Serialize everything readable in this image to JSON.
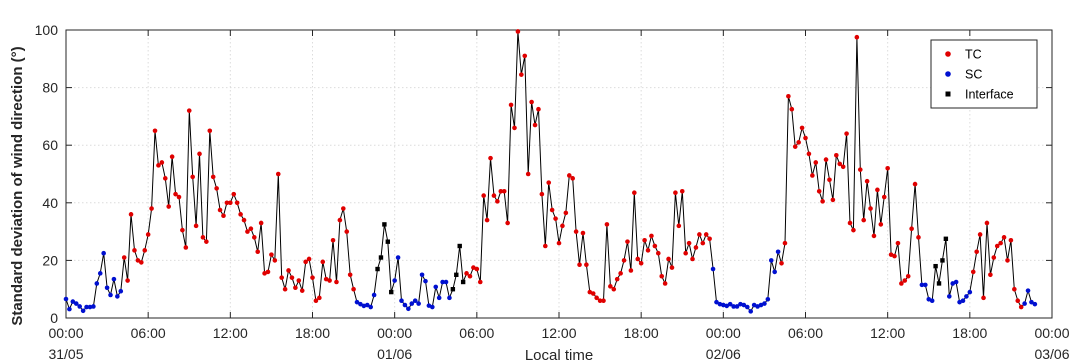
{
  "chart_data": {
    "type": "line",
    "title": "",
    "xlabel": "Local time",
    "ylabel": "Standard deviation of wind direction (°)",
    "ylim": [
      0,
      100
    ],
    "yticks": [
      0,
      20,
      40,
      60,
      80,
      100
    ],
    "xlim_hours": [
      0,
      72
    ],
    "xticks": [
      {
        "hours": 0,
        "time": "00:00",
        "date": "31/05"
      },
      {
        "hours": 6,
        "time": "06:00",
        "date": ""
      },
      {
        "hours": 12,
        "time": "12:00",
        "date": ""
      },
      {
        "hours": 18,
        "time": "18:00",
        "date": ""
      },
      {
        "hours": 24,
        "time": "00:00",
        "date": "01/06"
      },
      {
        "hours": 30,
        "time": "06:00",
        "date": ""
      },
      {
        "hours": 36,
        "time": "12:00",
        "date": ""
      },
      {
        "hours": 42,
        "time": "18:00",
        "date": ""
      },
      {
        "hours": 48,
        "time": "00:00",
        "date": "02/06"
      },
      {
        "hours": 54,
        "time": "06:00",
        "date": ""
      },
      {
        "hours": 60,
        "time": "12:00",
        "date": ""
      },
      {
        "hours": 66,
        "time": "18:00",
        "date": ""
      },
      {
        "hours": 72,
        "time": "00:00",
        "date": "03/06"
      }
    ],
    "grid": true,
    "legend": {
      "position": "top-right",
      "entries": [
        {
          "key": "TC",
          "label": "TC",
          "color": "#e00000"
        },
        {
          "key": "SC",
          "label": "SC",
          "color": "#0010d0"
        },
        {
          "key": "IF",
          "label": "Interface",
          "color": "#000000"
        }
      ]
    },
    "line_color": "#000000",
    "interval_minutes": 15,
    "segments": [
      {
        "class": "SC",
        "values": [
          6.6,
          3.1,
          5.7,
          5.0,
          4.0,
          2.5,
          3.8,
          3.8,
          4.0,
          12.0,
          15.5,
          22.5,
          10.5,
          8.0,
          13.5,
          7.5,
          9.3
        ]
      },
      {
        "class": "TC",
        "values": [
          21.0,
          13.0,
          36.0,
          23.5,
          20.0,
          19.3,
          23.5,
          29.0,
          38.0,
          65.0,
          53.0,
          54.0,
          48.5,
          38.7,
          56.0,
          43.0,
          42.0,
          30.5,
          24.5,
          72.0,
          49.0,
          32.0,
          57.0,
          28.0,
          26.5,
          65.0,
          49.0,
          45.0,
          37.5,
          35.5,
          40.0,
          40.0,
          43.0,
          40.0,
          36.0,
          34.0,
          30.0,
          31.0,
          28.0,
          23.0,
          33.0,
          15.5,
          16.0,
          22.0,
          20.0,
          50.0,
          14.0,
          10.0,
          16.5,
          14.0,
          10.5,
          13.0,
          9.5,
          19.5,
          20.5,
          14.0,
          6.0,
          7.0,
          19.5,
          13.5,
          13.0,
          27.0,
          12.5,
          34.0,
          38.0,
          30.0,
          15.0,
          10.0
        ]
      },
      {
        "class": "SC",
        "values": [
          5.5,
          4.8,
          4.2,
          4.5,
          3.8,
          8.0
        ]
      },
      {
        "class": "IF",
        "values": [
          17.0,
          21.0,
          32.5,
          26.5,
          9.0
        ]
      },
      {
        "class": "SC",
        "values": [
          13.0,
          21.0,
          6.0,
          4.5,
          3.2,
          5.0,
          6.0,
          5.0,
          15.0,
          12.8,
          4.3,
          3.8,
          10.8,
          7.0,
          12.5,
          12.5,
          7.0
        ]
      },
      {
        "class": "IF",
        "values": [
          10.0,
          15.0,
          25.0,
          12.5
        ]
      },
      {
        "class": "TC",
        "values": [
          15.5,
          14.5,
          17.5,
          17.0,
          12.5,
          42.5,
          34.0,
          55.5,
          42.5,
          40.5,
          44.0,
          44.0,
          33.0,
          74.0,
          66.0,
          99.5,
          84.5,
          91.0,
          50.0,
          75.0,
          67.0,
          72.5,
          43.0,
          25.0,
          47.0,
          37.5,
          34.5,
          26.0,
          32.0,
          36.5,
          49.5,
          48.5,
          30.0,
          18.5,
          29.5,
          18.5,
          9.0,
          8.5,
          7.0,
          6.0,
          6.0,
          32.5,
          11.0,
          10.0,
          13.5,
          15.5,
          20.0,
          26.5,
          16.5,
          43.5,
          20.5,
          19.0,
          27.0,
          23.5,
          28.5,
          25.0,
          22.5,
          14.5,
          12.0,
          20.5,
          17.5,
          43.5,
          32.0,
          44.0,
          22.5,
          26.0,
          20.5,
          24.5,
          29.0,
          26.0,
          29.0,
          27.5
        ]
      },
      {
        "class": "SC",
        "values": [
          17.0,
          5.5,
          4.8,
          4.5,
          4.2,
          4.8,
          4.0,
          4.0,
          4.8,
          4.5,
          3.8,
          2.3,
          4.5,
          4.0,
          4.5,
          5.0,
          6.5,
          20.0,
          16.0,
          23.0
        ]
      },
      {
        "class": "TC",
        "values": [
          19.0,
          26.0,
          77.0,
          72.5,
          59.5,
          61.0,
          66.0,
          62.5,
          57.0,
          49.5,
          54.0,
          44.0,
          40.5,
          55.0,
          48.0,
          41.0,
          56.5,
          53.5,
          52.5,
          64.0,
          33.0,
          30.5,
          97.5,
          51.5,
          34.0,
          47.5,
          38.0,
          28.5,
          44.5,
          32.5,
          42.0,
          52.0,
          22.0,
          21.5,
          26.0,
          12.0,
          13.0,
          14.5,
          31.0,
          46.5,
          28.0
        ]
      },
      {
        "class": "SC",
        "values": [
          11.5,
          11.5,
          6.5,
          6.0
        ]
      },
      {
        "class": "IF",
        "values": [
          18.0,
          12.0,
          20.0,
          27.5
        ]
      },
      {
        "class": "SC",
        "values": [
          7.5,
          12.0,
          12.5,
          5.5,
          6.0,
          7.5,
          9.0
        ]
      },
      {
        "class": "TC",
        "values": [
          16.0,
          23.0,
          29.0,
          7.0,
          33.0,
          15.0,
          21.0,
          25.0,
          26.0,
          28.0,
          20.0,
          27.0,
          10.0,
          6.0,
          3.8
        ]
      },
      {
        "class": "SC",
        "values": [
          5.0,
          9.5,
          5.5,
          4.8
        ]
      }
    ]
  }
}
